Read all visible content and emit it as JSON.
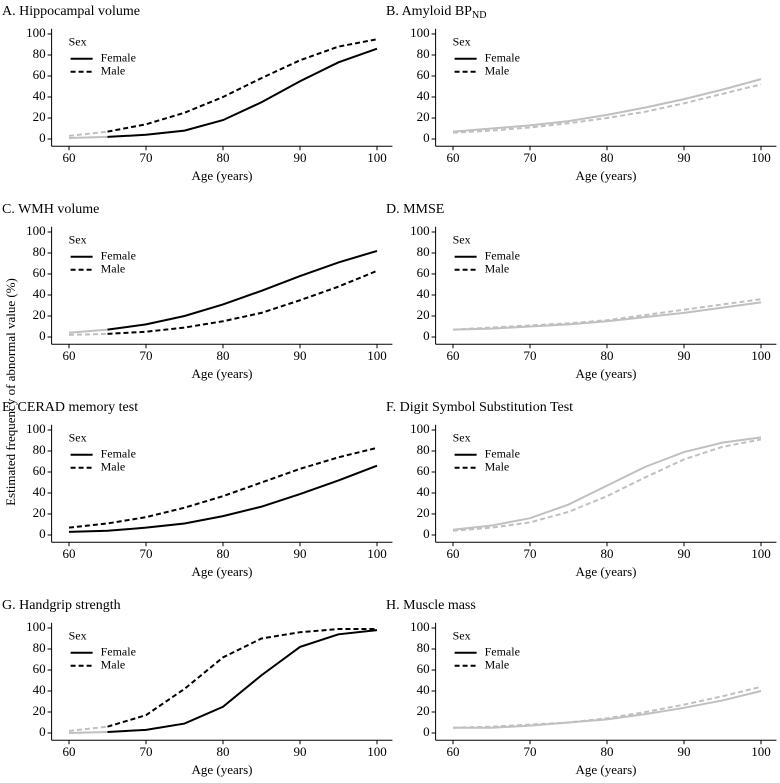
{
  "ylabel": "Estimated frequency of abnormal value (%)",
  "chart_data": [
    {
      "type": "line",
      "title": "A. Hippocampal volume",
      "xlabel": "Age (years)",
      "legend_title": "Sex",
      "legend_position": "top-left",
      "legend_color": "#000000",
      "x": [
        60,
        65,
        70,
        75,
        80,
        85,
        90,
        95,
        100
      ],
      "xlim": [
        58,
        102
      ],
      "ylim": [
        -5,
        105
      ],
      "xticks": [
        60,
        70,
        80,
        90,
        100
      ],
      "yticks": [
        0,
        20,
        40,
        60,
        80,
        100
      ],
      "series": [
        {
          "name": "Female",
          "dash": false,
          "values": [
            1,
            2,
            4,
            8,
            18,
            35,
            55,
            73,
            86
          ],
          "segment_colors": [
            "#c0c0c0",
            "#000000",
            "#000000",
            "#000000",
            "#000000",
            "#000000",
            "#000000",
            "#000000"
          ]
        },
        {
          "name": "Male",
          "dash": true,
          "values": [
            3,
            7,
            14,
            25,
            40,
            58,
            75,
            88,
            95
          ],
          "segment_colors": [
            "#c0c0c0",
            "#000000",
            "#000000",
            "#000000",
            "#000000",
            "#000000",
            "#000000",
            "#000000"
          ]
        }
      ]
    },
    {
      "type": "line",
      "title": "B. Amyloid BP",
      "title_sub": "ND",
      "xlabel": "Age (years)",
      "legend_title": "Sex",
      "legend_position": "top-left",
      "legend_color": "#000000",
      "x": [
        60,
        65,
        70,
        75,
        80,
        85,
        90,
        95,
        100
      ],
      "xlim": [
        58,
        102
      ],
      "ylim": [
        -5,
        105
      ],
      "xticks": [
        60,
        70,
        80,
        90,
        100
      ],
      "yticks": [
        0,
        20,
        40,
        60,
        80,
        100
      ],
      "series": [
        {
          "name": "Female",
          "dash": false,
          "values": [
            7,
            10,
            13,
            17,
            23,
            30,
            38,
            47,
            57
          ],
          "segment_colors": [
            "#c0c0c0",
            "#c0c0c0",
            "#c0c0c0",
            "#c0c0c0",
            "#c0c0c0",
            "#c0c0c0",
            "#c0c0c0",
            "#c0c0c0"
          ]
        },
        {
          "name": "Male",
          "dash": true,
          "values": [
            6,
            8,
            11,
            15,
            20,
            26,
            34,
            43,
            52
          ],
          "segment_colors": [
            "#c0c0c0",
            "#c0c0c0",
            "#c0c0c0",
            "#c0c0c0",
            "#c0c0c0",
            "#c0c0c0",
            "#c0c0c0",
            "#c0c0c0"
          ]
        }
      ]
    },
    {
      "type": "line",
      "title": "C. WMH volume",
      "xlabel": "Age (years)",
      "legend_title": "Sex",
      "legend_position": "top-left",
      "legend_color": "#000000",
      "x": [
        60,
        65,
        70,
        75,
        80,
        85,
        90,
        95,
        100
      ],
      "xlim": [
        58,
        102
      ],
      "ylim": [
        -5,
        105
      ],
      "xticks": [
        60,
        70,
        80,
        90,
        100
      ],
      "yticks": [
        0,
        20,
        40,
        60,
        80,
        100
      ],
      "series": [
        {
          "name": "Female",
          "dash": false,
          "values": [
            4,
            7,
            12,
            20,
            31,
            44,
            58,
            71,
            82
          ],
          "segment_colors": [
            "#c0c0c0",
            "#000000",
            "#000000",
            "#000000",
            "#000000",
            "#000000",
            "#000000",
            "#000000"
          ]
        },
        {
          "name": "Male",
          "dash": true,
          "values": [
            2,
            3,
            5,
            9,
            15,
            23,
            35,
            48,
            63
          ],
          "segment_colors": [
            "#c0c0c0",
            "#000000",
            "#000000",
            "#000000",
            "#000000",
            "#000000",
            "#000000",
            "#000000"
          ]
        }
      ]
    },
    {
      "type": "line",
      "title": "D. MMSE",
      "xlabel": "Age (years)",
      "legend_title": "Sex",
      "legend_position": "top-left",
      "legend_color": "#000000",
      "x": [
        60,
        65,
        70,
        75,
        80,
        85,
        90,
        95,
        100
      ],
      "xlim": [
        58,
        102
      ],
      "ylim": [
        -5,
        105
      ],
      "xticks": [
        60,
        70,
        80,
        90,
        100
      ],
      "yticks": [
        0,
        20,
        40,
        60,
        80,
        100
      ],
      "series": [
        {
          "name": "Female",
          "dash": false,
          "values": [
            7,
            8,
            10,
            12,
            15,
            19,
            23,
            28,
            33
          ],
          "segment_colors": [
            "#c0c0c0",
            "#c0c0c0",
            "#c0c0c0",
            "#c0c0c0",
            "#c0c0c0",
            "#c0c0c0",
            "#c0c0c0",
            "#c0c0c0"
          ]
        },
        {
          "name": "Male",
          "dash": true,
          "values": [
            7,
            9,
            11,
            13,
            16,
            21,
            26,
            31,
            36
          ],
          "segment_colors": [
            "#c0c0c0",
            "#c0c0c0",
            "#c0c0c0",
            "#c0c0c0",
            "#c0c0c0",
            "#c0c0c0",
            "#c0c0c0",
            "#c0c0c0"
          ]
        }
      ]
    },
    {
      "type": "line",
      "title": "E. CERAD memory test",
      "xlabel": "Age (years)",
      "legend_title": "Sex",
      "legend_position": "top-left",
      "legend_color": "#000000",
      "x": [
        60,
        65,
        70,
        75,
        80,
        85,
        90,
        95,
        100
      ],
      "xlim": [
        58,
        102
      ],
      "ylim": [
        -5,
        105
      ],
      "xticks": [
        60,
        70,
        80,
        90,
        100
      ],
      "yticks": [
        0,
        20,
        40,
        60,
        80,
        100
      ],
      "series": [
        {
          "name": "Female",
          "dash": false,
          "values": [
            3,
            4,
            7,
            11,
            18,
            27,
            39,
            52,
            66
          ],
          "segment_colors": [
            "#000000",
            "#000000",
            "#000000",
            "#000000",
            "#000000",
            "#000000",
            "#000000",
            "#000000"
          ]
        },
        {
          "name": "Male",
          "dash": true,
          "values": [
            7,
            11,
            17,
            26,
            37,
            50,
            63,
            74,
            83
          ],
          "segment_colors": [
            "#000000",
            "#000000",
            "#000000",
            "#000000",
            "#000000",
            "#000000",
            "#000000",
            "#000000"
          ]
        }
      ]
    },
    {
      "type": "line",
      "title": "F. Digit Symbol Substitution Test",
      "xlabel": "Age (years)",
      "legend_title": "Sex",
      "legend_position": "top-left",
      "legend_color": "#000000",
      "x": [
        60,
        65,
        70,
        75,
        80,
        85,
        90,
        95,
        100
      ],
      "xlim": [
        58,
        102
      ],
      "ylim": [
        -5,
        105
      ],
      "xticks": [
        60,
        70,
        80,
        90,
        100
      ],
      "yticks": [
        0,
        20,
        40,
        60,
        80,
        100
      ],
      "series": [
        {
          "name": "Female",
          "dash": false,
          "values": [
            5,
            9,
            16,
            29,
            47,
            65,
            79,
            88,
            93
          ],
          "segment_colors": [
            "#c0c0c0",
            "#c0c0c0",
            "#c0c0c0",
            "#c0c0c0",
            "#c0c0c0",
            "#c0c0c0",
            "#c0c0c0",
            "#c0c0c0"
          ]
        },
        {
          "name": "Male",
          "dash": true,
          "values": [
            4,
            7,
            12,
            22,
            37,
            55,
            72,
            84,
            91
          ],
          "segment_colors": [
            "#c0c0c0",
            "#c0c0c0",
            "#c0c0c0",
            "#c0c0c0",
            "#c0c0c0",
            "#c0c0c0",
            "#c0c0c0",
            "#c0c0c0"
          ]
        }
      ]
    },
    {
      "type": "line",
      "title": "G. Handgrip strength",
      "xlabel": "Age (years)",
      "legend_title": "Sex",
      "legend_position": "top-left",
      "legend_color": "#000000",
      "x": [
        60,
        65,
        70,
        75,
        80,
        85,
        90,
        95,
        100
      ],
      "xlim": [
        58,
        102
      ],
      "ylim": [
        -5,
        105
      ],
      "xticks": [
        60,
        70,
        80,
        90,
        100
      ],
      "yticks": [
        0,
        20,
        40,
        60,
        80,
        100
      ],
      "series": [
        {
          "name": "Female",
          "dash": false,
          "values": [
            0,
            1,
            3,
            9,
            25,
            55,
            82,
            94,
            98
          ],
          "segment_colors": [
            "#c0c0c0",
            "#000000",
            "#000000",
            "#000000",
            "#000000",
            "#000000",
            "#000000",
            "#000000"
          ]
        },
        {
          "name": "Male",
          "dash": true,
          "values": [
            2,
            6,
            17,
            42,
            72,
            90,
            96,
            99,
            99
          ],
          "segment_colors": [
            "#c0c0c0",
            "#000000",
            "#000000",
            "#000000",
            "#000000",
            "#000000",
            "#000000",
            "#000000"
          ]
        }
      ]
    },
    {
      "type": "line",
      "title": "H. Muscle mass",
      "xlabel": "Age (years)",
      "legend_title": "Sex",
      "legend_position": "top-left",
      "legend_color": "#000000",
      "x": [
        60,
        65,
        70,
        75,
        80,
        85,
        90,
        95,
        100
      ],
      "xlim": [
        58,
        102
      ],
      "ylim": [
        -5,
        105
      ],
      "xticks": [
        60,
        70,
        80,
        90,
        100
      ],
      "yticks": [
        0,
        20,
        40,
        60,
        80,
        100
      ],
      "series": [
        {
          "name": "Female",
          "dash": false,
          "values": [
            5,
            5,
            7,
            10,
            13,
            18,
            24,
            31,
            40
          ],
          "segment_colors": [
            "#c0c0c0",
            "#c0c0c0",
            "#c0c0c0",
            "#c0c0c0",
            "#c0c0c0",
            "#c0c0c0",
            "#c0c0c0",
            "#c0c0c0"
          ]
        },
        {
          "name": "Male",
          "dash": true,
          "values": [
            5,
            6,
            8,
            10,
            14,
            20,
            27,
            35,
            44
          ],
          "segment_colors": [
            "#c0c0c0",
            "#c0c0c0",
            "#c0c0c0",
            "#c0c0c0",
            "#c0c0c0",
            "#c0c0c0",
            "#c0c0c0",
            "#c0c0c0"
          ]
        }
      ]
    }
  ]
}
